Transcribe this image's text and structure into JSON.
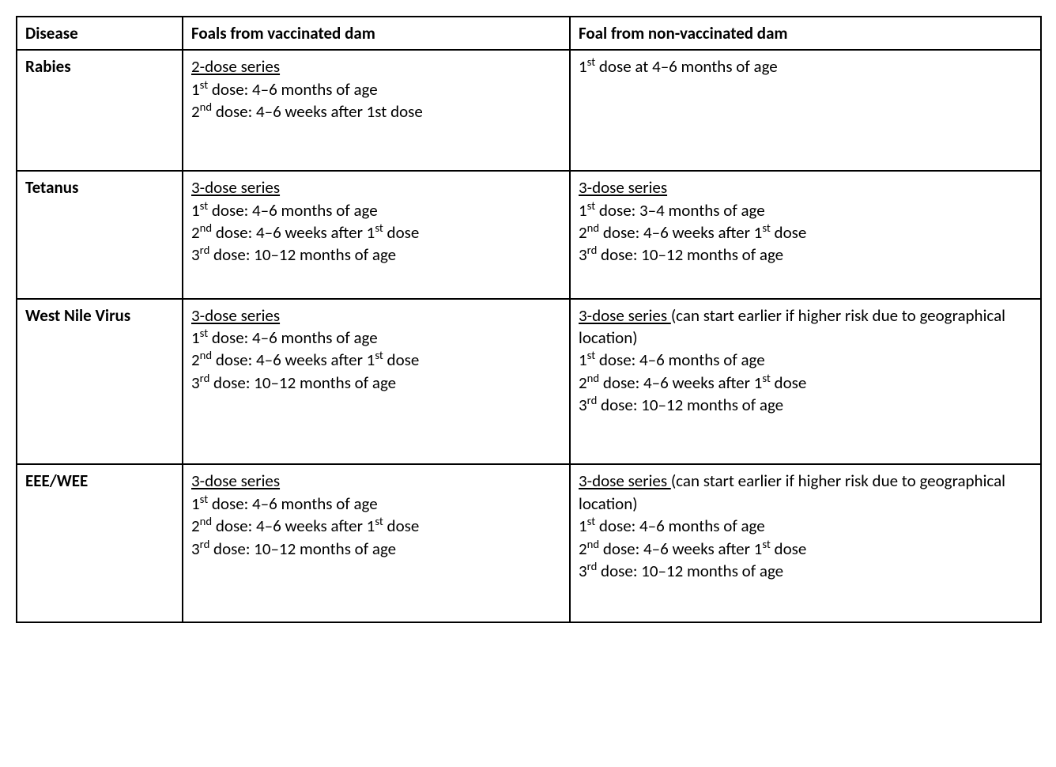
{
  "columns": {
    "disease": "Disease",
    "vaccinated": "Foals from vaccinated dam",
    "nonvaccinated": "Foal from non-vaccinated dam"
  },
  "rows": {
    "rabies": {
      "disease": "Rabies",
      "vac": {
        "series": "2-dose series",
        "d1_pre": "1",
        "d1_sup": "st",
        "d1_post": " dose: 4–6 months of age",
        "d2_pre": "2",
        "d2_sup": "nd",
        "d2_post": " dose: 4–6 weeks after 1st dose"
      },
      "non": {
        "d1_pre": "1",
        "d1_sup": "st",
        "d1_post": " dose at 4–6 months of age"
      }
    },
    "tetanus": {
      "disease": "Tetanus",
      "vac": {
        "series": "3-dose series",
        "d1_pre": "1",
        "d1_sup": "st",
        "d1_post": " dose: 4–6 months of age",
        "d2a_pre": "2",
        "d2a_sup": "nd",
        "d2a_mid": " dose: 4–6 weeks after 1",
        "d2b_sup": "st",
        "d2b_post": " dose",
        "d3_pre": "3",
        "d3_sup": "rd",
        "d3_post": " dose: 10–12 months of age"
      },
      "non": {
        "series": "3-dose series",
        "d1_pre": "1",
        "d1_sup": "st",
        "d1_post": " dose: 3–4 months of age",
        "d2a_pre": "2",
        "d2a_sup": "nd",
        "d2a_mid": " dose: 4–6 weeks after 1",
        "d2b_sup": "st",
        "d2b_post": " dose",
        "d3_pre": "3",
        "d3_sup": "rd",
        "d3_post": " dose: 10–12 months of age"
      }
    },
    "wnv": {
      "disease": "West Nile Virus",
      "vac": {
        "series": "3-dose series",
        "d1_pre": "1",
        "d1_sup": "st",
        "d1_post": " dose: 4–6 months of age",
        "d2a_pre": "2",
        "d2a_sup": "nd",
        "d2a_mid": " dose: 4–6 weeks after 1",
        "d2b_sup": "st",
        "d2b_post": " dose",
        "d3_pre": "3",
        "d3_sup": "rd",
        "d3_post": " dose: 10–12 months of age"
      },
      "non": {
        "series": "3-dose series ",
        "note": "(can start earlier if higher risk due to geographical location)",
        "d1_pre": "1",
        "d1_sup": "st",
        "d1_post": " dose: 4–6 months of age",
        "d2a_pre": "2",
        "d2a_sup": "nd",
        "d2a_mid": " dose: 4–6 weeks after 1",
        "d2b_sup": "st",
        "d2b_post": " dose",
        "d3_pre": "3",
        "d3_sup": "rd",
        "d3_post": " dose: 10–12 months of age"
      }
    },
    "eee": {
      "disease": "EEE/WEE",
      "vac": {
        "series": "3-dose series",
        "d1_pre": "1",
        "d1_sup": "st",
        "d1_post": " dose: 4–6 months of age",
        "d2a_pre": "2",
        "d2a_sup": "nd",
        "d2a_mid": " dose: 4–6 weeks after 1",
        "d2b_sup": "st",
        "d2b_post": " dose",
        "d3_pre": "3",
        "d3_sup": "rd",
        "d3_post": " dose: 10–12 months of age"
      },
      "non": {
        "series": "3-dose series ",
        "note": "(can start earlier if higher risk due to geographical location)",
        "d1_pre": "1",
        "d1_sup": "st",
        "d1_post": " dose: 4–6 months of age",
        "d2a_pre": "2",
        "d2a_sup": "nd",
        "d2a_mid": " dose: 4–6 weeks after 1",
        "d2b_sup": "st",
        "d2b_post": " dose",
        "d3_pre": "3",
        "d3_sup": "rd",
        "d3_post": " dose: 10–12 months of age"
      }
    }
  }
}
